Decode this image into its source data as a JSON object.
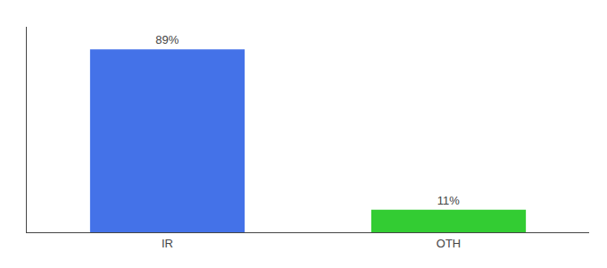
{
  "chart_data": {
    "type": "bar",
    "categories": [
      "IR",
      "OTH"
    ],
    "values": [
      89,
      11
    ],
    "value_labels": [
      "89%",
      "11%"
    ],
    "data_labels": true,
    "colors": [
      "#4472e8",
      "#33cc33"
    ],
    "ylim": [
      0,
      100
    ],
    "grid": false,
    "tick_labels": "x"
  }
}
